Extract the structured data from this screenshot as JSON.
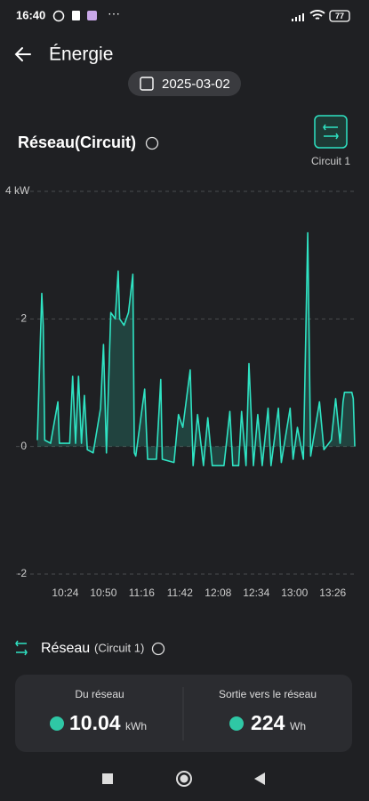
{
  "status_bar": {
    "time": "16:40",
    "battery": "77"
  },
  "header": {
    "title": "Énergie"
  },
  "date": "2025-03-02",
  "section": {
    "title": "Réseau(Circuit)",
    "circuit_button": "Circuit 1"
  },
  "chart_data": {
    "type": "line",
    "color": "#2fe3c3",
    "grid": true,
    "x": [
      "10:05",
      "10:08",
      "10:09",
      "10:10",
      "10:14",
      "10:19",
      "10:20",
      "10:27",
      "10:29",
      "10:31",
      "10:33",
      "10:35",
      "10:37",
      "10:39",
      "10:43",
      "10:48",
      "10:50",
      "10:52",
      "10:55",
      "10:58",
      "11:00",
      "11:01",
      "11:04",
      "11:07",
      "11:10",
      "11:11",
      "11:12",
      "11:18",
      "11:20",
      "11:26",
      "11:29",
      "11:30",
      "11:38",
      "11:41",
      "11:44",
      "11:49",
      "11:51",
      "11:54",
      "11:58",
      "12:01",
      "12:04",
      "12:12",
      "12:16",
      "12:18",
      "12:22",
      "12:24",
      "12:27",
      "12:29",
      "12:32",
      "12:35",
      "12:38",
      "12:42",
      "12:44",
      "12:49",
      "12:51",
      "12:57",
      "12:59",
      "13:02",
      "13:06",
      "13:09",
      "13:11",
      "13:17",
      "13:20",
      "13:25",
      "13:28",
      "13:31",
      "13:33",
      "13:34",
      "13:39",
      "13:40",
      "13:41"
    ],
    "values": [
      0.1,
      2.4,
      1.9,
      0.1,
      0.05,
      0.7,
      0.05,
      0.05,
      1.1,
      0.05,
      1.1,
      0.05,
      0.8,
      -0.05,
      -0.1,
      0.6,
      1.6,
      -0.1,
      2.1,
      2.0,
      2.75,
      2.0,
      1.9,
      2.1,
      2.7,
      -0.1,
      -0.15,
      0.9,
      -0.2,
      -0.2,
      1.05,
      -0.2,
      -0.25,
      0.5,
      0.3,
      1.2,
      -0.3,
      0.5,
      -0.3,
      0.45,
      -0.3,
      -0.3,
      0.55,
      -0.3,
      -0.3,
      0.55,
      -0.3,
      1.3,
      -0.3,
      0.5,
      -0.3,
      0.6,
      -0.3,
      0.6,
      -0.25,
      0.6,
      -0.2,
      0.3,
      -0.2,
      3.35,
      -0.15,
      0.7,
      -0.05,
      0.1,
      0.75,
      0.05,
      0.7,
      0.85,
      0.85,
      0.75,
      0.0
    ],
    "xlim": [
      "10:05",
      "13:41"
    ],
    "xticks": [
      "10:24",
      "10:50",
      "11:16",
      "11:42",
      "12:08",
      "12:34",
      "13:00",
      "13:26"
    ],
    "ylim": [
      -2,
      4
    ],
    "yticks": [
      {
        "value": 4,
        "label": "4 kW"
      },
      2,
      0,
      -2
    ]
  },
  "legend": {
    "name": "Réseau",
    "detail": "(Circuit 1)"
  },
  "summary": {
    "import": {
      "label": "Du réseau",
      "value": 10.04,
      "unit": "kWh"
    },
    "export": {
      "label": "Sortie vers le réseau",
      "value": 224,
      "unit": "Wh"
    }
  }
}
